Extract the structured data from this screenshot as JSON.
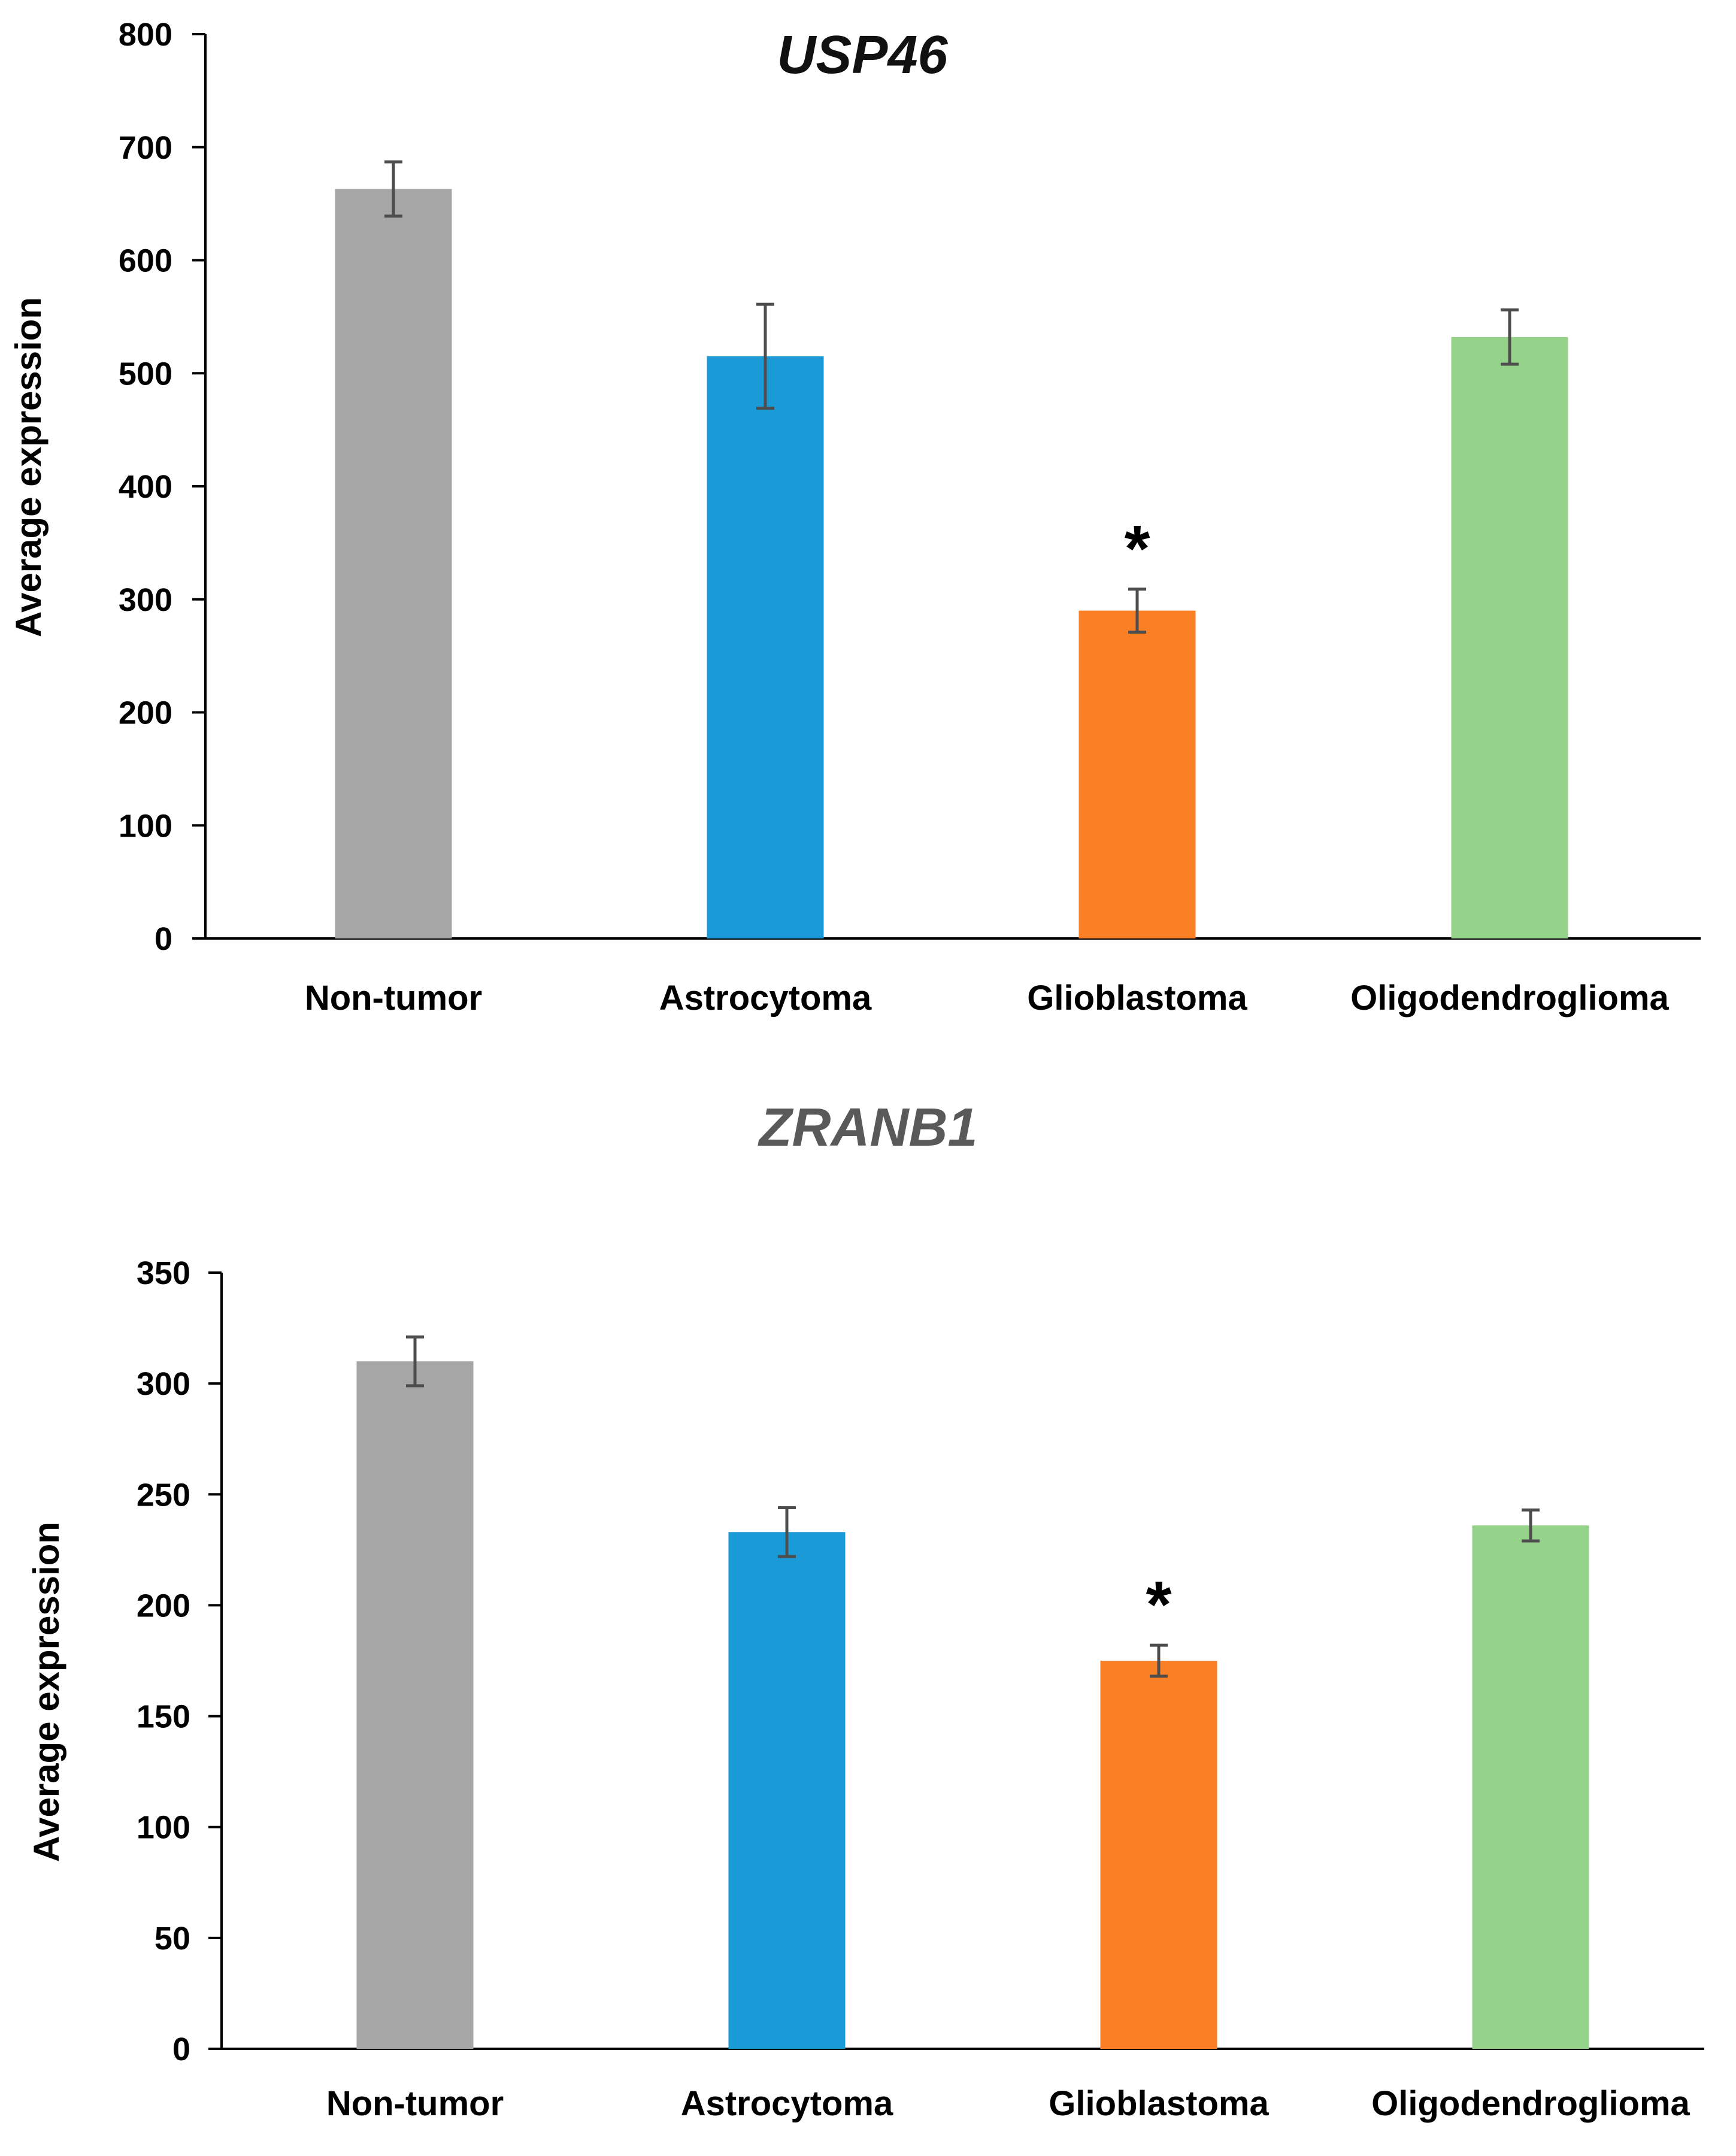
{
  "chart_data": [
    {
      "type": "bar",
      "title": "USP46",
      "title_color": "#111111",
      "xlabel": "",
      "ylabel": "Average expression",
      "ylim": [
        0,
        800
      ],
      "yticks": [
        0,
        100,
        200,
        300,
        400,
        500,
        600,
        700,
        800
      ],
      "categories": [
        "Non-tumor",
        "Astrocytoma",
        "Glioblastoma",
        "Oligodendroglioma"
      ],
      "values": [
        663,
        515,
        290,
        532
      ],
      "errors": [
        24,
        46,
        19,
        24
      ],
      "colors": [
        "#a6a6a6",
        "#1a9ad6",
        "#fb7f25",
        "#95d38a"
      ],
      "significance": [
        "",
        "",
        "*",
        ""
      ],
      "grid": false
    },
    {
      "type": "bar",
      "title": "ZRANB1",
      "title_color": "#595959",
      "xlabel": "",
      "ylabel": "Average expression",
      "ylim": [
        0,
        350
      ],
      "yticks": [
        0,
        50,
        100,
        150,
        200,
        250,
        300,
        350
      ],
      "categories": [
        "Non-tumor",
        "Astrocytoma",
        "Glioblastoma",
        "Oligodendroglioma"
      ],
      "values": [
        310,
        233,
        175,
        236
      ],
      "errors": [
        11,
        11,
        7,
        7
      ],
      "colors": [
        "#a6a6a6",
        "#1a9ad6",
        "#fb7f25",
        "#95d38a"
      ],
      "significance": [
        "",
        "",
        "*",
        ""
      ],
      "grid": false
    }
  ]
}
